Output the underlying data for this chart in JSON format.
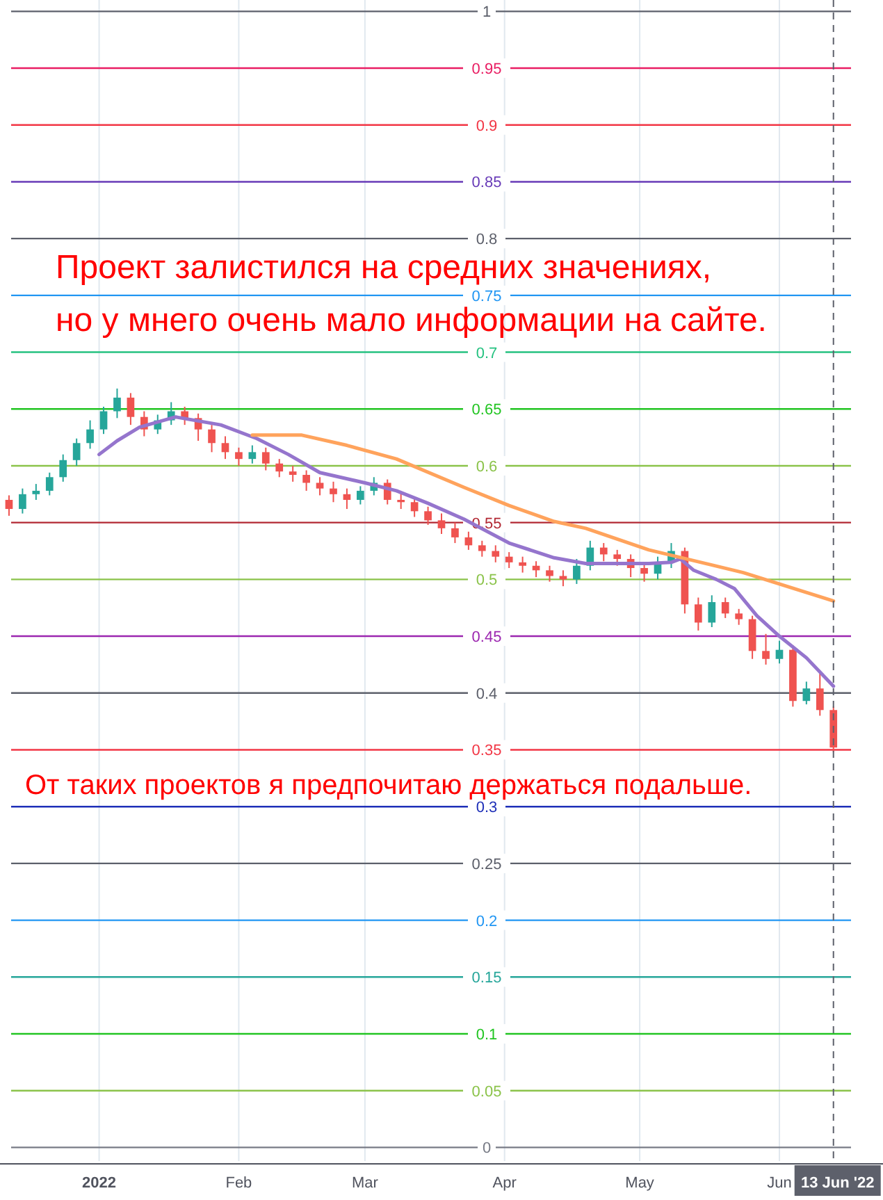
{
  "chart_data": {
    "type": "candlestick",
    "x": [
      "2021-12-12",
      "2021-12-15",
      "2021-12-18",
      "2021-12-21",
      "2021-12-24",
      "2021-12-27",
      "2021-12-30",
      "2022-01-02",
      "2022-01-05",
      "2022-01-08",
      "2022-01-11",
      "2022-01-14",
      "2022-01-17",
      "2022-01-20",
      "2022-01-23",
      "2022-01-26",
      "2022-01-29",
      "2022-02-01",
      "2022-02-04",
      "2022-02-07",
      "2022-02-10",
      "2022-02-13",
      "2022-02-16",
      "2022-02-19",
      "2022-02-22",
      "2022-02-25",
      "2022-02-28",
      "2022-03-03",
      "2022-03-06",
      "2022-03-09",
      "2022-03-12",
      "2022-03-15",
      "2022-03-18",
      "2022-03-21",
      "2022-03-24",
      "2022-03-27",
      "2022-03-30",
      "2022-04-02",
      "2022-04-05",
      "2022-04-08",
      "2022-04-11",
      "2022-04-14",
      "2022-04-17",
      "2022-04-20",
      "2022-04-23",
      "2022-04-26",
      "2022-04-29",
      "2022-05-02",
      "2022-05-05",
      "2022-05-08",
      "2022-05-11",
      "2022-05-14",
      "2022-05-17",
      "2022-05-20",
      "2022-05-23",
      "2022-05-26",
      "2022-05-29",
      "2022-06-01",
      "2022-06-04",
      "2022-06-07",
      "2022-06-10",
      "2022-06-13"
    ],
    "ohlc": [
      [
        0.57,
        0.574,
        0.556,
        0.562
      ],
      [
        0.562,
        0.58,
        0.558,
        0.575
      ],
      [
        0.575,
        0.584,
        0.57,
        0.578
      ],
      [
        0.578,
        0.594,
        0.574,
        0.59
      ],
      [
        0.59,
        0.61,
        0.586,
        0.605
      ],
      [
        0.605,
        0.624,
        0.6,
        0.62
      ],
      [
        0.62,
        0.64,
        0.615,
        0.632
      ],
      [
        0.632,
        0.652,
        0.628,
        0.648
      ],
      [
        0.648,
        0.668,
        0.642,
        0.66
      ],
      [
        0.66,
        0.664,
        0.636,
        0.643
      ],
      [
        0.643,
        0.648,
        0.626,
        0.632
      ],
      [
        0.632,
        0.645,
        0.628,
        0.64
      ],
      [
        0.64,
        0.656,
        0.636,
        0.648
      ],
      [
        0.648,
        0.652,
        0.636,
        0.642
      ],
      [
        0.642,
        0.646,
        0.622,
        0.632
      ],
      [
        0.632,
        0.636,
        0.612,
        0.62
      ],
      [
        0.62,
        0.626,
        0.606,
        0.612
      ],
      [
        0.612,
        0.616,
        0.6,
        0.606
      ],
      [
        0.606,
        0.618,
        0.602,
        0.612
      ],
      [
        0.612,
        0.616,
        0.596,
        0.602
      ],
      [
        0.602,
        0.606,
        0.59,
        0.595
      ],
      [
        0.595,
        0.6,
        0.586,
        0.592
      ],
      [
        0.592,
        0.596,
        0.578,
        0.585
      ],
      [
        0.585,
        0.59,
        0.574,
        0.58
      ],
      [
        0.58,
        0.586,
        0.568,
        0.575
      ],
      [
        0.575,
        0.58,
        0.562,
        0.57
      ],
      [
        0.57,
        0.582,
        0.566,
        0.578
      ],
      [
        0.578,
        0.59,
        0.574,
        0.585
      ],
      [
        0.585,
        0.588,
        0.566,
        0.57
      ],
      [
        0.57,
        0.576,
        0.562,
        0.568
      ],
      [
        0.568,
        0.572,
        0.555,
        0.56
      ],
      [
        0.56,
        0.564,
        0.548,
        0.552
      ],
      [
        0.552,
        0.558,
        0.54,
        0.545
      ],
      [
        0.545,
        0.55,
        0.532,
        0.537
      ],
      [
        0.537,
        0.542,
        0.526,
        0.53
      ],
      [
        0.53,
        0.534,
        0.52,
        0.525
      ],
      [
        0.525,
        0.53,
        0.515,
        0.52
      ],
      [
        0.52,
        0.524,
        0.51,
        0.515
      ],
      [
        0.515,
        0.52,
        0.506,
        0.512
      ],
      [
        0.512,
        0.516,
        0.502,
        0.508
      ],
      [
        0.508,
        0.512,
        0.498,
        0.503
      ],
      [
        0.503,
        0.508,
        0.494,
        0.5
      ],
      [
        0.5,
        0.518,
        0.496,
        0.512
      ],
      [
        0.512,
        0.534,
        0.508,
        0.528
      ],
      [
        0.528,
        0.532,
        0.516,
        0.522
      ],
      [
        0.522,
        0.526,
        0.512,
        0.518
      ],
      [
        0.518,
        0.522,
        0.502,
        0.51
      ],
      [
        0.51,
        0.514,
        0.498,
        0.505
      ],
      [
        0.505,
        0.52,
        0.5,
        0.515
      ],
      [
        0.515,
        0.532,
        0.51,
        0.525
      ],
      [
        0.525,
        0.528,
        0.47,
        0.478
      ],
      [
        0.478,
        0.484,
        0.455,
        0.462
      ],
      [
        0.462,
        0.486,
        0.458,
        0.48
      ],
      [
        0.48,
        0.484,
        0.466,
        0.47
      ],
      [
        0.47,
        0.474,
        0.46,
        0.465
      ],
      [
        0.465,
        0.468,
        0.43,
        0.437
      ],
      [
        0.437,
        0.452,
        0.425,
        0.43
      ],
      [
        0.43,
        0.446,
        0.426,
        0.438
      ],
      [
        0.438,
        0.442,
        0.388,
        0.393
      ],
      [
        0.393,
        0.41,
        0.39,
        0.404
      ],
      [
        0.404,
        0.418,
        0.38,
        0.385
      ],
      [
        0.385,
        0.388,
        0.348,
        0.352
      ]
    ],
    "colors": [
      "#ef5350",
      "#26a69a",
      "#26a69a",
      "#26a69a",
      "#26a69a",
      "#26a69a",
      "#26a69a",
      "#26a69a",
      "#26a69a",
      "#ef5350",
      "#ef5350",
      "#26a69a",
      "#26a69a",
      "#ef5350",
      "#ef5350",
      "#ef5350",
      "#ef5350",
      "#ef5350",
      "#26a69a",
      "#ef5350",
      "#ef5350",
      "#ef5350",
      "#ef5350",
      "#ef5350",
      "#ef5350",
      "#ef5350",
      "#26a69a",
      "#26a69a",
      "#ef5350",
      "#ef5350",
      "#ef5350",
      "#ef5350",
      "#ef5350",
      "#ef5350",
      "#ef5350",
      "#ef5350",
      "#ef5350",
      "#ef5350",
      "#ef5350",
      "#ef5350",
      "#ef5350",
      "#ef5350",
      "#26a69a",
      "#26a69a",
      "#ef5350",
      "#ef5350",
      "#ef5350",
      "#ef5350",
      "#26a69a",
      "#26a69a",
      "#ef5350",
      "#ef5350",
      "#26a69a",
      "#ef5350",
      "#ef5350",
      "#ef5350",
      "#ef5350",
      "#26a69a",
      "#ef5350",
      "#26a69a",
      "#ef5350",
      "#ef5350"
    ],
    "series": [
      {
        "type": "line",
        "color": "#9575cd",
        "x": [
          "2022-01-01",
          "2022-01-05",
          "2022-01-10",
          "2022-01-18",
          "2022-01-28",
          "2022-02-05",
          "2022-02-12",
          "2022-02-19",
          "2022-03-01",
          "2022-03-08",
          "2022-03-15",
          "2022-03-23",
          "2022-04-02",
          "2022-04-12",
          "2022-04-19",
          "2022-04-26",
          "2022-05-03",
          "2022-05-08",
          "2022-05-10",
          "2022-05-13",
          "2022-05-18",
          "2022-05-22",
          "2022-05-27",
          "2022-06-01",
          "2022-06-07",
          "2022-06-13"
        ],
        "values": [
          0.61,
          0.622,
          0.634,
          0.643,
          0.636,
          0.624,
          0.61,
          0.594,
          0.585,
          0.578,
          0.567,
          0.553,
          0.532,
          0.519,
          0.514,
          0.514,
          0.514,
          0.515,
          0.518,
          0.508,
          0.5,
          0.492,
          0.468,
          0.45,
          0.431,
          0.406
        ]
      },
      {
        "type": "line",
        "color": "#ffa35c",
        "x": [
          "2022-02-04",
          "2022-02-15",
          "2022-02-25",
          "2022-03-08",
          "2022-03-23",
          "2022-04-02",
          "2022-04-12",
          "2022-04-19",
          "2022-05-03",
          "2022-05-24",
          "2022-06-13"
        ],
        "values": [
          0.627,
          0.627,
          0.618,
          0.606,
          0.581,
          0.565,
          0.551,
          0.545,
          0.526,
          0.506,
          0.481
        ]
      }
    ],
    "xlim": [
      "2021-12-10",
      "2022-06-24"
    ],
    "xticks": [
      {
        "value": "2022-01-01",
        "label": "2022"
      },
      {
        "value": "2022-02-01",
        "label": "Feb"
      },
      {
        "value": "2022-03-01",
        "label": "Mar"
      },
      {
        "value": "2022-04-01",
        "label": "Apr"
      },
      {
        "value": "2022-05-01",
        "label": "May"
      },
      {
        "value": "2022-06-01",
        "label": "Jun"
      }
    ],
    "ylim": [
      -0.012,
      1.01
    ],
    "tick_labels": "x",
    "grid": "x",
    "ref_lines": [
      {
        "axis": "y",
        "value": 1,
        "label": "1",
        "color": "#5d606b"
      },
      {
        "axis": "y",
        "value": 0.95,
        "label": "0.95",
        "color": "#e91e63"
      },
      {
        "axis": "y",
        "value": 0.9,
        "label": "0.9",
        "color": "#f23645"
      },
      {
        "axis": "y",
        "value": 0.85,
        "label": "0.85",
        "color": "#673ab7"
      },
      {
        "axis": "y",
        "value": 0.8,
        "label": "0.8",
        "color": "#5d606b"
      },
      {
        "axis": "y",
        "value": 0.75,
        "label": "0.75",
        "color": "#2196f3"
      },
      {
        "axis": "y",
        "value": 0.7,
        "label": "0.7",
        "color": "#26c281"
      },
      {
        "axis": "y",
        "value": 0.65,
        "label": "0.65",
        "color": "#22c522"
      },
      {
        "axis": "y",
        "value": 0.6,
        "label": "0.6",
        "color": "#8bc34a"
      },
      {
        "axis": "y",
        "value": 0.55,
        "label": "0.55",
        "color": "#b22833"
      },
      {
        "axis": "y",
        "value": 0.5,
        "label": "0.5",
        "color": "#8bc34a"
      },
      {
        "axis": "y",
        "value": 0.45,
        "label": "0.45",
        "color": "#9c27b0"
      },
      {
        "axis": "y",
        "value": 0.4,
        "label": "0.4",
        "color": "#5d606b"
      },
      {
        "axis": "y",
        "value": 0.35,
        "label": "0.35",
        "color": "#f23645"
      },
      {
        "axis": "y",
        "value": 0.3,
        "label": "0.3",
        "color": "#1e2fb8"
      },
      {
        "axis": "y",
        "value": 0.25,
        "label": "0.25",
        "color": "#5d606b"
      },
      {
        "axis": "y",
        "value": 0.2,
        "label": "0.2",
        "color": "#2196f3"
      },
      {
        "axis": "y",
        "value": 0.15,
        "label": "0.15",
        "color": "#26a69a"
      },
      {
        "axis": "y",
        "value": 0.1,
        "label": "0.1",
        "color": "#22c522"
      },
      {
        "axis": "y",
        "value": 0.05,
        "label": "0.05",
        "color": "#8bc34a"
      },
      {
        "axis": "y",
        "value": 0,
        "label": "0",
        "color": "#787b86"
      },
      {
        "axis": "x",
        "value": "2022-06-13",
        "label": "13 Jun '22",
        "color": "#5d606b",
        "line_style": "dashed"
      }
    ],
    "annotations": [
      "Проект залистился на средних значениях,",
      "но у мнего очень мало информации на сайте.",
      "От таких проектов я предпочитаю держаться подальше."
    ]
  }
}
